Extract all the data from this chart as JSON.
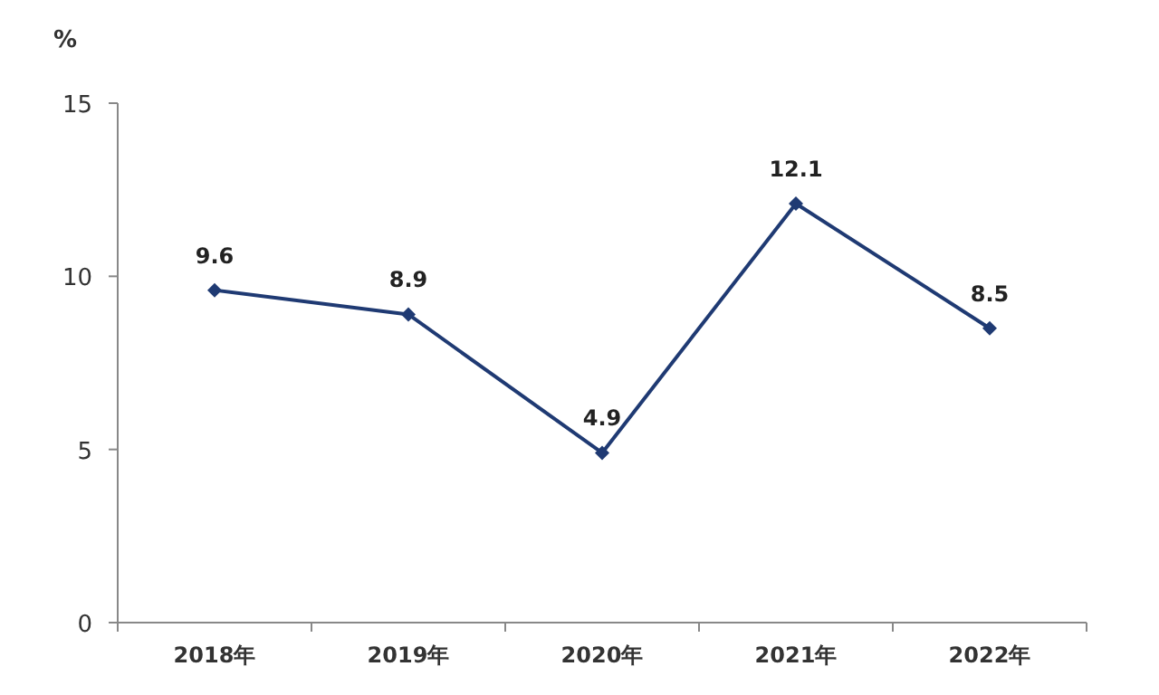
{
  "chart_data": {
    "type": "line",
    "ylabel": "%",
    "categories": [
      "2018年",
      "2019年",
      "2020年",
      "2021年",
      "2022年"
    ],
    "series": [
      {
        "color": "#1f3a73",
        "values": [
          9.6,
          8.9,
          4.9,
          12.1,
          8.5
        ]
      }
    ],
    "ylim": [
      0,
      15
    ],
    "yticks": [
      0,
      5,
      10,
      15
    ],
    "data_labels": true,
    "marker": "diamond"
  }
}
